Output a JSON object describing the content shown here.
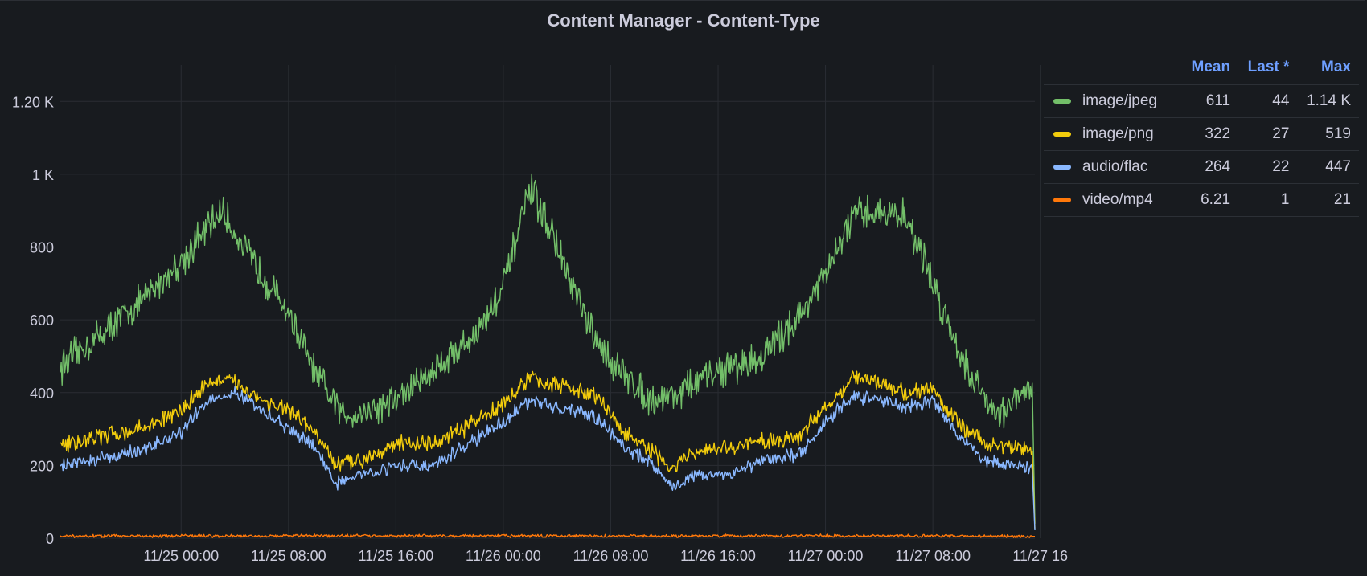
{
  "panel": {
    "title": "Content Manager - Content-Type"
  },
  "legend": {
    "headers": {
      "mean": "Mean",
      "last": "Last *",
      "max": "Max"
    },
    "rows": [
      {
        "name": "image/jpeg",
        "color": "#73bf69",
        "mean": "611",
        "last": "44",
        "max": "1.14 K"
      },
      {
        "name": "image/png",
        "color": "#f2cc0c",
        "mean": "322",
        "last": "27",
        "max": "519"
      },
      {
        "name": "audio/flac",
        "color": "#8ab8ff",
        "mean": "264",
        "last": "22",
        "max": "447"
      },
      {
        "name": "video/mp4",
        "color": "#ff780a",
        "mean": "6.21",
        "last": "1",
        "max": "21"
      }
    ]
  },
  "chart_data": {
    "type": "line",
    "title": "Content Manager - Content-Type",
    "x_range": [
      "11/24 15:00",
      "11/27 16:15"
    ],
    "ylim": [
      0,
      1300
    ],
    "y_ticks": [
      {
        "value": 0,
        "label": "0"
      },
      {
        "value": 200,
        "label": "200"
      },
      {
        "value": 400,
        "label": "400"
      },
      {
        "value": 600,
        "label": "600"
      },
      {
        "value": 800,
        "label": "800"
      },
      {
        "value": 1000,
        "label": "1 K"
      },
      {
        "value": 1200,
        "label": "1.20 K"
      }
    ],
    "x_ticks": [
      {
        "hours": 9,
        "label": "11/25 00:00"
      },
      {
        "hours": 17,
        "label": "11/25 08:00"
      },
      {
        "hours": 25,
        "label": "11/25 16:00"
      },
      {
        "hours": 33,
        "label": "11/26 00:00"
      },
      {
        "hours": 41,
        "label": "11/26 08:00"
      },
      {
        "hours": 49,
        "label": "11/26 16:00"
      },
      {
        "hours": 57,
        "label": "11/27 00:00"
      },
      {
        "hours": 65,
        "label": "11/27 08:00"
      },
      {
        "hours": 73,
        "label": "11/27 16"
      }
    ],
    "grid": true,
    "legend_position": "right",
    "series": [
      {
        "name": "image/jpeg",
        "color": "#73bf69",
        "noise": 70,
        "keypoints": [
          [
            0,
            470
          ],
          [
            3,
            560
          ],
          [
            6,
            650
          ],
          [
            9,
            760
          ],
          [
            12,
            900
          ],
          [
            14,
            780
          ],
          [
            17,
            620
          ],
          [
            19,
            450
          ],
          [
            21,
            340
          ],
          [
            23,
            350
          ],
          [
            25,
            380
          ],
          [
            28,
            470
          ],
          [
            31,
            560
          ],
          [
            33,
            690
          ],
          [
            35,
            960
          ],
          [
            36.5,
            850
          ],
          [
            38,
            700
          ],
          [
            40,
            530
          ],
          [
            42,
            450
          ],
          [
            44,
            380
          ],
          [
            46,
            400
          ],
          [
            49,
            460
          ],
          [
            52,
            490
          ],
          [
            55,
            610
          ],
          [
            57,
            720
          ],
          [
            59,
            880
          ],
          [
            61,
            900
          ],
          [
            63,
            880
          ],
          [
            64.5,
            750
          ],
          [
            66,
            600
          ],
          [
            68,
            430
          ],
          [
            70,
            340
          ],
          [
            72,
            400
          ],
          [
            72.4,
            430
          ],
          [
            72.6,
            40
          ]
        ]
      },
      {
        "name": "image/png",
        "color": "#f2cc0c",
        "noise": 35,
        "keypoints": [
          [
            0,
            255
          ],
          [
            3,
            280
          ],
          [
            6,
            300
          ],
          [
            9,
            350
          ],
          [
            11,
            430
          ],
          [
            13,
            430
          ],
          [
            15,
            380
          ],
          [
            17,
            350
          ],
          [
            19,
            290
          ],
          [
            20.5,
            200
          ],
          [
            22,
            210
          ],
          [
            25,
            260
          ],
          [
            28,
            260
          ],
          [
            30,
            300
          ],
          [
            33,
            370
          ],
          [
            35,
            440
          ],
          [
            37,
            420
          ],
          [
            40,
            390
          ],
          [
            42,
            290
          ],
          [
            44,
            240
          ],
          [
            45.5,
            190
          ],
          [
            47,
            230
          ],
          [
            50,
            250
          ],
          [
            53,
            270
          ],
          [
            55,
            280
          ],
          [
            57,
            360
          ],
          [
            59,
            440
          ],
          [
            61,
            430
          ],
          [
            63,
            400
          ],
          [
            65,
            410
          ],
          [
            67,
            310
          ],
          [
            69,
            260
          ],
          [
            71,
            250
          ],
          [
            72.4,
            240
          ],
          [
            72.6,
            27
          ]
        ]
      },
      {
        "name": "audio/flac",
        "color": "#8ab8ff",
        "noise": 28,
        "keypoints": [
          [
            0,
            200
          ],
          [
            3,
            220
          ],
          [
            6,
            240
          ],
          [
            9,
            290
          ],
          [
            11,
            380
          ],
          [
            13,
            400
          ],
          [
            15,
            350
          ],
          [
            17,
            300
          ],
          [
            19,
            250
          ],
          [
            20.5,
            150
          ],
          [
            22,
            170
          ],
          [
            25,
            200
          ],
          [
            28,
            200
          ],
          [
            30,
            250
          ],
          [
            33,
            320
          ],
          [
            35,
            380
          ],
          [
            37,
            360
          ],
          [
            40,
            330
          ],
          [
            42,
            250
          ],
          [
            44,
            210
          ],
          [
            45.5,
            140
          ],
          [
            47,
            170
          ],
          [
            50,
            180
          ],
          [
            53,
            220
          ],
          [
            55,
            230
          ],
          [
            57,
            320
          ],
          [
            59,
            390
          ],
          [
            61,
            380
          ],
          [
            63,
            360
          ],
          [
            65,
            380
          ],
          [
            67,
            280
          ],
          [
            69,
            210
          ],
          [
            71,
            200
          ],
          [
            72.4,
            190
          ],
          [
            72.6,
            22
          ]
        ]
      },
      {
        "name": "video/mp4",
        "color": "#ff780a",
        "noise": 6,
        "keypoints": [
          [
            0,
            6
          ],
          [
            20,
            7
          ],
          [
            40,
            6
          ],
          [
            60,
            7
          ],
          [
            72.6,
            5
          ]
        ]
      }
    ]
  }
}
